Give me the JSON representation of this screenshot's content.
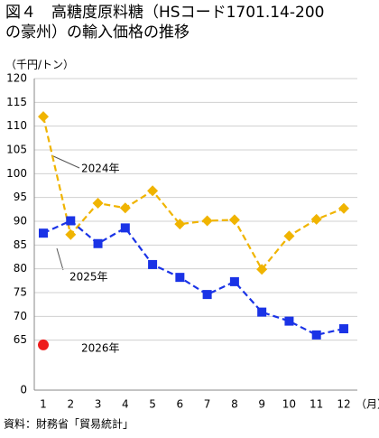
{
  "chart_data": {
    "type": "line",
    "title": [
      "図４　高糖度原料糖（HSコード1701.14-200",
      "の豪州）の輸入価格の推移"
    ],
    "y_label": "（千円/トン）",
    "x_label": "（月）",
    "source": "資料：財務省「貿易統計」",
    "categories": [
      "1",
      "2",
      "3",
      "4",
      "5",
      "6",
      "7",
      "8",
      "9",
      "10",
      "11",
      "12"
    ],
    "series": [
      {
        "name": "2024年",
        "color": "#f0b400",
        "marker": "diamond",
        "dashed": true,
        "values": [
          112,
          87.2,
          93.8,
          92.8,
          96.4,
          89.4,
          90.1,
          90.3,
          79.9,
          86.9,
          90.4,
          92.7
        ]
      },
      {
        "name": "2025年",
        "color": "#1a33e6",
        "marker": "square",
        "dashed": true,
        "values": [
          87.5,
          90.1,
          85.3,
          88.6,
          80.9,
          78.2,
          74.6,
          77.3,
          70.9,
          69.0,
          66.1,
          67.4
        ]
      },
      {
        "name": "2026年",
        "color": "#ee1c1c",
        "marker": "circle",
        "dashed": false,
        "values": [
          64,
          null,
          null,
          null,
          null,
          null,
          null,
          null,
          null,
          null,
          null,
          null
        ]
      }
    ],
    "ylim": [
      0,
      120
    ],
    "ybreak": [
      0,
      60
    ],
    "yticks": [
      0,
      65,
      70,
      75,
      80,
      85,
      90,
      95,
      100,
      105,
      110,
      115,
      120
    ],
    "grid": true
  }
}
